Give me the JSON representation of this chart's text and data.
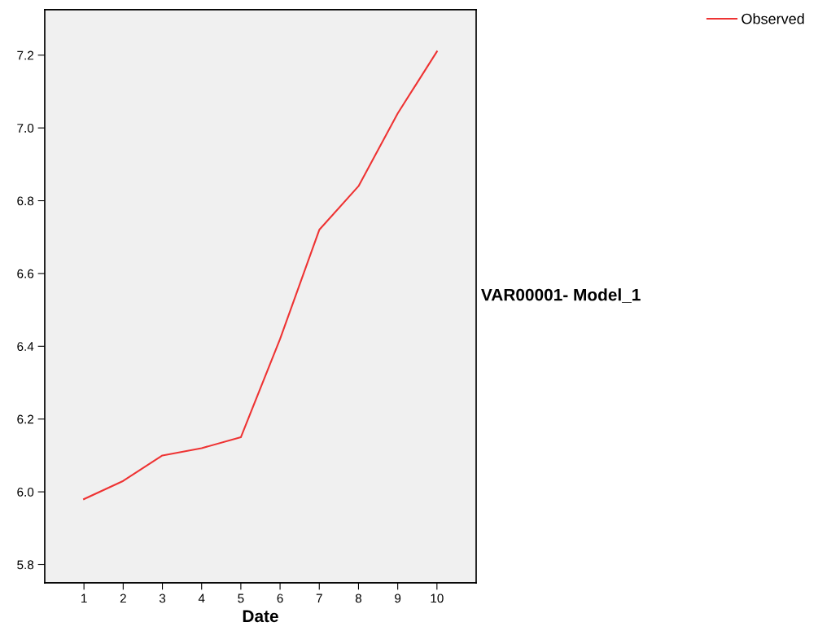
{
  "chart_data": {
    "type": "line",
    "xlabel": "Date",
    "ylabel": "VAR00001- Model_1",
    "x": [
      1,
      2,
      3,
      4,
      5,
      6,
      7,
      8,
      9,
      10
    ],
    "series": [
      {
        "name": "Observed",
        "color": "#ee3333",
        "values": [
          5.98,
          6.03,
          6.1,
          6.12,
          6.15,
          6.42,
          6.72,
          6.84,
          7.04,
          7.21
        ]
      }
    ],
    "xlim": [
      0,
      11
    ],
    "xticks": [
      1,
      2,
      3,
      4,
      5,
      6,
      7,
      8,
      9,
      10
    ],
    "ylim": [
      5.75,
      7.325
    ],
    "yticks": [
      {
        "value": 5.8,
        "label": "5.8"
      },
      {
        "value": 6.0,
        "label": "6.0"
      },
      {
        "value": 6.2,
        "label": "6.2"
      },
      {
        "value": 6.4,
        "label": "6.4"
      },
      {
        "value": 6.6,
        "label": "6.6"
      },
      {
        "value": 6.8,
        "label": "6.8"
      },
      {
        "value": 7.0,
        "label": "7.0"
      },
      {
        "value": 7.2,
        "label": "7.2"
      }
    ],
    "grid": false,
    "legend": "top right",
    "marker": "none",
    "line_style": "solid"
  }
}
